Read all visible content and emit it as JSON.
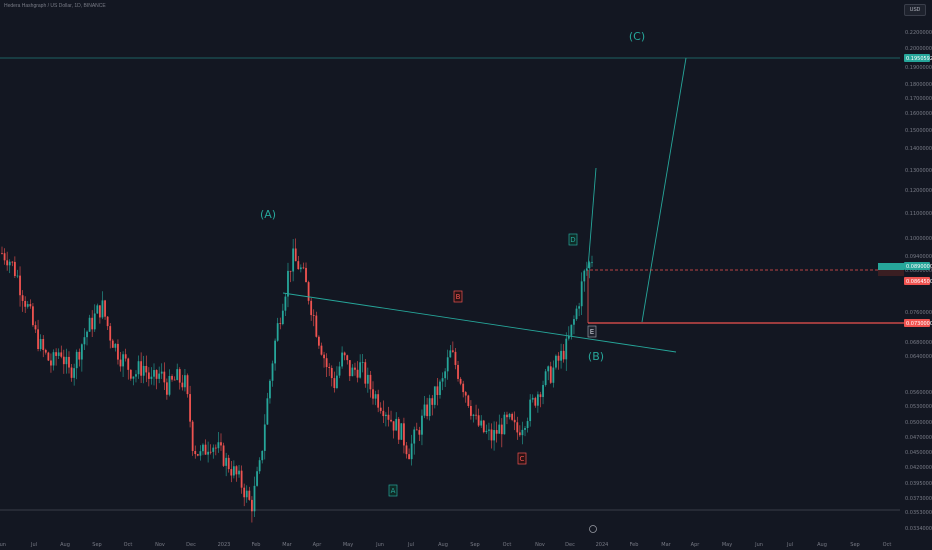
{
  "header": {
    "title": "Hedera Hashgraph / US Dollar, 1D, BINANCE",
    "currency": "USD"
  },
  "colors": {
    "background": "#131722",
    "up": "#26a69a",
    "down": "#ef5350",
    "line": "#26a69a",
    "label_green": "#26a69a",
    "label_red": "#ef5350"
  },
  "chart_data": {
    "type": "candlestick",
    "x_ticks": [
      "Jun",
      "Jul",
      "Aug",
      "Sep",
      "Oct",
      "Nov",
      "Dec",
      "2023",
      "Feb",
      "Mar",
      "Apr",
      "May",
      "Jun",
      "Jul",
      "Aug",
      "Sep",
      "Oct",
      "Nov",
      "Dec",
      "2024",
      "Feb",
      "Mar",
      "Apr",
      "May",
      "Jun",
      "Jul",
      "Aug",
      "Sep",
      "Oct"
    ],
    "y_ticks": [
      "0.22000000",
      "0.20000000",
      "0.19000000",
      "0.18000000",
      "0.17000000",
      "0.16000000",
      "0.15000000",
      "0.14000000",
      "0.13000000",
      "0.12000000",
      "0.11000000",
      "0.10000000",
      "0.09400000",
      "0.08800000",
      "0.07600000",
      "0.06800000",
      "0.06400000",
      "0.05600000",
      "0.05300000",
      "0.05000000",
      "0.04700000",
      "0.04500000",
      "0.04200000",
      "0.03950000",
      "0.03730000",
      "0.03530000",
      "0.03340000"
    ],
    "price_tags": [
      {
        "value": "0.19505929",
        "color": "#26a69a"
      },
      {
        "value": "0.08900000",
        "color": "#26a69a"
      },
      {
        "value": "0.08645000",
        "color": "#ef5350"
      },
      {
        "value": "0.07300000",
        "color": "#ef5350"
      }
    ],
    "wave_labels": [
      {
        "text": "(A)",
        "style": "plain"
      },
      {
        "text": "(B)",
        "style": "plain"
      },
      {
        "text": "(C)",
        "style": "plain"
      },
      {
        "text": "A",
        "style": "box-green"
      },
      {
        "text": "B",
        "style": "box-red"
      },
      {
        "text": "C",
        "style": "box-red"
      },
      {
        "text": "D",
        "style": "box-green"
      },
      {
        "text": "E",
        "style": "box-gray"
      }
    ],
    "ohlc_path": [
      0.095,
      0.092,
      0.085,
      0.078,
      0.07,
      0.065,
      0.062,
      0.066,
      0.06,
      0.064,
      0.07,
      0.074,
      0.078,
      0.07,
      0.065,
      0.062,
      0.06,
      0.062,
      0.058,
      0.06,
      0.057,
      0.059,
      0.058,
      0.046,
      0.044,
      0.047,
      0.045,
      0.043,
      0.041,
      0.039,
      0.036,
      0.042,
      0.055,
      0.07,
      0.082,
      0.093,
      0.088,
      0.08,
      0.07,
      0.062,
      0.058,
      0.064,
      0.06,
      0.062,
      0.058,
      0.055,
      0.053,
      0.05,
      0.048,
      0.045,
      0.048,
      0.052,
      0.055,
      0.058,
      0.065,
      0.06,
      0.055,
      0.05,
      0.048,
      0.047,
      0.049,
      0.05,
      0.048,
      0.051,
      0.054,
      0.058,
      0.06,
      0.063,
      0.067,
      0.075,
      0.086,
      0.093
    ]
  }
}
